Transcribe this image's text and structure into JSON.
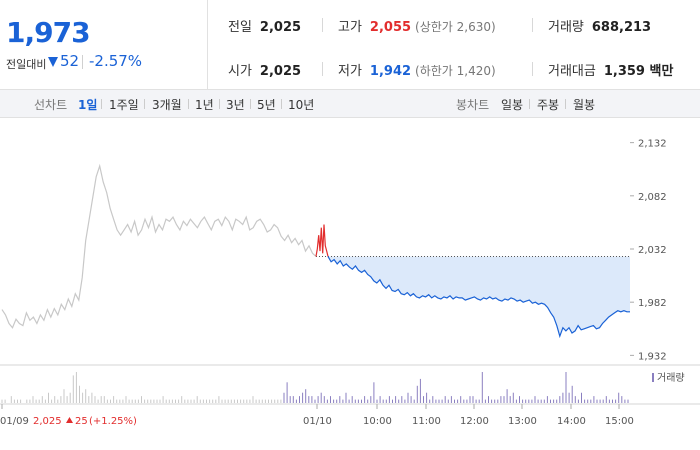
{
  "summary": {
    "current_price": "1,973",
    "change_label": "전일대비",
    "change_value": "52",
    "change_percent": "-2.57%",
    "prev_close_label": "전일",
    "prev_close": "2,025",
    "high_label": "고가",
    "high": "2,055",
    "upper_limit": "(상한가 2,630)",
    "volume_label": "거래량",
    "volume": "688,213",
    "open_label": "시가",
    "open": "2,025",
    "low_label": "저가",
    "low": "1,942",
    "lower_limit": "(하한가 1,420)",
    "amount_label": "거래대금",
    "amount": "1,359 백만"
  },
  "periods": {
    "line_title": "선차트",
    "line_items": [
      "1일",
      "1주일",
      "3개월",
      "1년",
      "3년",
      "5년",
      "10년"
    ],
    "active": "1일",
    "candle_title": "봉차트",
    "candle_items": [
      "일봉",
      "주봉",
      "월봉"
    ]
  },
  "prev_day": {
    "date": "01/09",
    "close": "2,025",
    "change": "25",
    "change_pct": "(+1.25%)"
  },
  "colors": {
    "up": "#e22d2d",
    "down": "#1a62d6",
    "prev_line": "#c8c8c8",
    "area_fill": "#dce9fa",
    "volume_bar": "#8a7fc0"
  },
  "chart_data": {
    "type": "line",
    "ylim": [
      1922,
      2142
    ],
    "y_ticks": [
      2132,
      2082,
      2032,
      1982,
      1932
    ],
    "y_tick_labels": [
      "2,132",
      "2,082",
      "2,032",
      "1,982",
      "1,932"
    ],
    "x_tick_labels": [
      "01/09",
      "01/10",
      "10:00",
      "11:00",
      "12:00",
      "13:00",
      "14:00",
      "15:00"
    ],
    "reference_price": 2025,
    "volume_legend": "거래량",
    "series": [
      {
        "name": "",
        "segment": "prev_day",
        "values": [
          1975,
          1970,
          1962,
          1958,
          1966,
          1962,
          1960,
          1972,
          1965,
          1968,
          1962,
          1970,
          1965,
          1975,
          1968,
          1976,
          1970,
          1980,
          1975,
          1985,
          1978,
          1990,
          1984,
          2005,
          2040,
          2060,
          2080,
          2100,
          2110,
          2095,
          2085,
          2070,
          2060,
          2050,
          2045,
          2050,
          2055,
          2048,
          2058,
          2045,
          2050,
          2060,
          2052,
          2062,
          2048,
          2055,
          2050,
          2060,
          2058,
          2062,
          2055,
          2050,
          2058,
          2054,
          2060,
          2056,
          2052,
          2058,
          2062,
          2056,
          2050,
          2058,
          2060,
          2054,
          2062,
          2058,
          2050,
          2060,
          2058,
          2055,
          2062,
          2050,
          2052,
          2058,
          2060,
          2055,
          2048,
          2050,
          2055,
          2052,
          2044,
          2040,
          2045,
          2038,
          2042,
          2036,
          2040,
          2030,
          2035,
          2028,
          2025
        ]
      },
      {
        "name": "",
        "segment": "early_up",
        "values": [
          2025,
          2032,
          2045,
          2030,
          2052,
          2028,
          2055,
          2035,
          2030,
          2025
        ]
      },
      {
        "name": "",
        "segment": "today",
        "values": [
          2025,
          2020,
          2022,
          2018,
          2021,
          2016,
          2018,
          2015,
          2013,
          2016,
          2012,
          2010,
          2012,
          2008,
          2006,
          2002,
          2000,
          2003,
          1998,
          1995,
          1998,
          1993,
          1992,
          1994,
          1990,
          1989,
          1991,
          1988,
          1990,
          1987,
          1986,
          1988,
          1987,
          1989,
          1986,
          1988,
          1986,
          1985,
          1987,
          1986,
          1988,
          1985,
          1987,
          1986,
          1986,
          1984,
          1985,
          1986,
          1987,
          1985,
          1984,
          1986,
          1985,
          1987,
          1985,
          1986,
          1984,
          1983,
          1985,
          1984,
          1986,
          1985,
          1983,
          1984,
          1982,
          1983,
          1984,
          1981,
          1982,
          1980,
          1981,
          1980,
          1977,
          1972,
          1968,
          1960,
          1950,
          1958,
          1955,
          1958,
          1953,
          1955,
          1960,
          1956,
          1957,
          1958,
          1959,
          1960,
          1957,
          1958,
          1962,
          1965,
          1968,
          1970,
          1972,
          1974,
          1973,
          1974,
          1973,
          1973
        ]
      }
    ],
    "volume_values": [
      1,
      1,
      0,
      2,
      1,
      1,
      1,
      0,
      1,
      1,
      2,
      1,
      1,
      2,
      1,
      3,
      1,
      2,
      1,
      2,
      4,
      2,
      3,
      8,
      9,
      5,
      3,
      4,
      2,
      3,
      2,
      1,
      2,
      2,
      1,
      1,
      2,
      1,
      1,
      1,
      2,
      1,
      1,
      1,
      1,
      2,
      1,
      1,
      1,
      1,
      1,
      1,
      2,
      1,
      1,
      1,
      1,
      1,
      2,
      1,
      1,
      1,
      1,
      2,
      1,
      1,
      1,
      1,
      1,
      1,
      2,
      1,
      1,
      1,
      1,
      1,
      1,
      1,
      1,
      1,
      1,
      2,
      1,
      1,
      1,
      1,
      1,
      1,
      1,
      1,
      1,
      3,
      6,
      2,
      2,
      1,
      2,
      3,
      4,
      2,
      2,
      1,
      2,
      3,
      2,
      1,
      2,
      1,
      1,
      2,
      1,
      3,
      1,
      2,
      1,
      1,
      1,
      2,
      1,
      2,
      6,
      1,
      2,
      1,
      1,
      2,
      1,
      2,
      1,
      2,
      1,
      3,
      2,
      1,
      5,
      7,
      2,
      3,
      1,
      2,
      1,
      1,
      1,
      2,
      1,
      2,
      1,
      1,
      2,
      1,
      1,
      2,
      2,
      1,
      1,
      9,
      1,
      2,
      1,
      1,
      1,
      2,
      2,
      4,
      2,
      3,
      1,
      2,
      1,
      1,
      1,
      1,
      2,
      1,
      1,
      1,
      2,
      1,
      1,
      1,
      2,
      3,
      9,
      3,
      5,
      2,
      1,
      3,
      1,
      1,
      1,
      2,
      1,
      1,
      1,
      2,
      1,
      1,
      1,
      3,
      2,
      1,
      1
    ]
  }
}
